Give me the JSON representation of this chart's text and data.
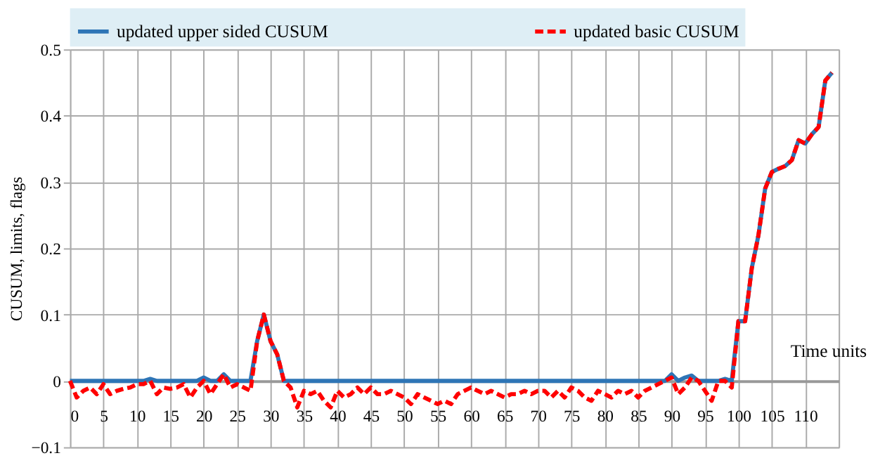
{
  "chart_data": {
    "type": "line",
    "ylabel": "CUSUM, limits, flags",
    "xlabel": "Time units",
    "xlim": [
      0,
      115
    ],
    "xticks": [
      0,
      5,
      10,
      15,
      20,
      25,
      30,
      35,
      40,
      45,
      50,
      55,
      60,
      65,
      70,
      75,
      80,
      85,
      90,
      95,
      100,
      105,
      110,
      {
        "value": 115,
        "label": null
      }
    ],
    "ylim": [
      -0.1,
      0.5
    ],
    "yticks": [
      -0.1,
      {
        "value": 0,
        "label": "0"
      },
      0.1,
      0.2,
      0.3,
      0.4,
      0.5
    ],
    "grid": true,
    "legend": "top",
    "series": [
      {
        "name": "updated  upper sided CUSUM",
        "color": "#2e75b6",
        "line_style": "solid",
        "x": [
          0,
          11,
          12,
          13,
          19,
          20,
          21,
          22,
          23,
          24,
          27,
          28,
          29,
          30,
          31,
          32,
          89,
          90,
          91,
          92,
          93,
          94,
          97,
          98,
          99,
          100,
          101,
          102,
          103,
          104,
          105,
          106,
          107,
          108,
          109,
          110,
          111,
          112,
          113,
          114
        ],
        "values": [
          0,
          0,
          0.003,
          0,
          0,
          0.005,
          0,
          0,
          0.01,
          0,
          0,
          0.06,
          0.1,
          0.06,
          0.04,
          0,
          0,
          0.01,
          0,
          0.005,
          0.008,
          0,
          0,
          0.003,
          0,
          0.09,
          0.09,
          0.17,
          0.22,
          0.29,
          0.315,
          0.32,
          0.324,
          0.333,
          0.363,
          0.358,
          0.372,
          0.383,
          0.453,
          0.465
        ]
      },
      {
        "name": "updated basic CUSUM",
        "color": "#ff0000",
        "line_style": "dashed",
        "x": [
          0,
          1,
          2,
          3,
          4,
          5,
          6,
          7,
          8,
          9,
          10,
          11,
          12,
          13,
          14,
          15,
          16,
          17,
          18,
          19,
          20,
          21,
          22,
          23,
          24,
          25,
          26,
          27,
          28,
          29,
          30,
          31,
          32,
          33,
          34,
          35,
          36,
          37,
          38,
          39,
          40,
          41,
          42,
          43,
          44,
          45,
          46,
          47,
          48,
          49,
          50,
          51,
          52,
          53,
          54,
          55,
          56,
          57,
          58,
          59,
          60,
          61,
          62,
          63,
          64,
          65,
          66,
          67,
          68,
          69,
          70,
          71,
          72,
          73,
          74,
          75,
          76,
          77,
          78,
          79,
          80,
          81,
          82,
          83,
          84,
          85,
          86,
          87,
          88,
          89,
          90,
          91,
          92,
          93,
          94,
          95,
          96,
          97,
          98,
          99,
          100,
          101,
          102,
          103,
          104,
          105,
          106,
          107,
          108,
          109,
          110,
          111,
          112,
          113,
          114
        ],
        "values": [
          0,
          -0.025,
          -0.015,
          -0.01,
          -0.02,
          -0.005,
          -0.02,
          -0.015,
          -0.012,
          -0.01,
          -0.005,
          -0.005,
          0,
          -0.02,
          -0.01,
          -0.012,
          -0.01,
          -0.005,
          -0.025,
          -0.01,
          0,
          -0.02,
          -0.005,
          0.01,
          -0.01,
          -0.005,
          -0.01,
          -0.015,
          0.06,
          0.1,
          0.06,
          0.04,
          0,
          -0.01,
          -0.04,
          -0.015,
          -0.02,
          -0.015,
          -0.03,
          -0.04,
          -0.015,
          -0.025,
          -0.02,
          -0.01,
          -0.02,
          -0.01,
          -0.02,
          -0.02,
          -0.015,
          -0.02,
          -0.025,
          -0.035,
          -0.02,
          -0.025,
          -0.03,
          -0.035,
          -0.03,
          -0.035,
          -0.02,
          -0.015,
          -0.01,
          -0.015,
          -0.02,
          -0.015,
          -0.02,
          -0.025,
          -0.02,
          -0.02,
          -0.015,
          -0.02,
          -0.015,
          -0.015,
          -0.025,
          -0.015,
          -0.025,
          -0.01,
          -0.015,
          -0.025,
          -0.03,
          -0.015,
          -0.02,
          -0.025,
          -0.015,
          -0.02,
          -0.015,
          -0.025,
          -0.015,
          -0.01,
          -0.005,
          0,
          0.005,
          -0.02,
          -0.01,
          0.005,
          0,
          -0.015,
          -0.03,
          0,
          0,
          -0.01,
          0.09,
          0.09,
          0.17,
          0.22,
          0.29,
          0.315,
          0.32,
          0.324,
          0.333,
          0.363,
          0.358,
          0.372,
          0.383,
          0.453,
          0.465
        ]
      }
    ]
  }
}
